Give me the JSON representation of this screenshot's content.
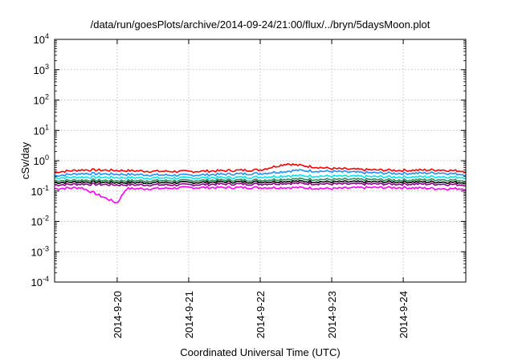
{
  "chart_data": {
    "type": "line",
    "title": "/data/run/goesPlots/archive/2014-09-24/21:00/flux/../bryn/5daysMoon.plot",
    "xlabel": "Coordinated Universal Time (UTC)",
    "ylabel": "cSv/day",
    "y_scale": "log",
    "ylim": [
      0.0001,
      10000
    ],
    "y_ticks": [
      {
        "base": "10",
        "exp": "-4",
        "value": 0.0001
      },
      {
        "base": "10",
        "exp": "-3",
        "value": 0.001
      },
      {
        "base": "10",
        "exp": "-2",
        "value": 0.01
      },
      {
        "base": "10",
        "exp": "-1",
        "value": 0.1
      },
      {
        "base": "10",
        "exp": "0",
        "value": 1
      },
      {
        "base": "10",
        "exp": "1",
        "value": 10
      },
      {
        "base": "10",
        "exp": "2",
        "value": 100
      },
      {
        "base": "10",
        "exp": "3",
        "value": 1000
      },
      {
        "base": "10",
        "exp": "4",
        "value": 10000
      }
    ],
    "xlim": [
      "2014-09-19 03:00",
      "2014-09-24 21:00"
    ],
    "x_ticks": [
      "2014-9-20",
      "2014-9-21",
      "2014-9-22",
      "2014-9-23",
      "2014-9-24"
    ],
    "x_tick_dates": [
      "2014-09-20",
      "2014-09-21",
      "2014-09-22",
      "2014-09-23",
      "2014-09-24"
    ],
    "grid": true,
    "series": [
      {
        "color": "#ff0000",
        "x": [
          "2014-09-19 03:00",
          "2014-09-19 12:00",
          "2014-09-20 00:00",
          "2014-09-20 12:00",
          "2014-09-21 00:00",
          "2014-09-21 12:00",
          "2014-09-22 00:00",
          "2014-09-22 09:00",
          "2014-09-22 12:00",
          "2014-09-23 00:00",
          "2014-09-23 12:00",
          "2014-09-24 00:00",
          "2014-09-24 12:00",
          "2014-09-24 21:00"
        ],
        "values": [
          0.42,
          0.5,
          0.48,
          0.45,
          0.44,
          0.47,
          0.5,
          0.8,
          0.72,
          0.55,
          0.5,
          0.48,
          0.5,
          0.45
        ]
      },
      {
        "color": "#1e90ff",
        "x": [
          "2014-09-19 03:00",
          "2014-09-19 12:00",
          "2014-09-20 00:00",
          "2014-09-20 12:00",
          "2014-09-21 00:00",
          "2014-09-21 12:00",
          "2014-09-22 00:00",
          "2014-09-22 09:00",
          "2014-09-22 12:00",
          "2014-09-23 00:00",
          "2014-09-23 12:00",
          "2014-09-24 00:00",
          "2014-09-24 12:00",
          "2014-09-24 21:00"
        ],
        "values": [
          0.32,
          0.38,
          0.36,
          0.34,
          0.33,
          0.36,
          0.38,
          0.45,
          0.48,
          0.44,
          0.4,
          0.38,
          0.4,
          0.35
        ]
      },
      {
        "color": "#00e5ee",
        "x": [
          "2014-09-19 03:00",
          "2014-09-19 12:00",
          "2014-09-20 00:00",
          "2014-09-20 12:00",
          "2014-09-21 00:00",
          "2014-09-21 12:00",
          "2014-09-22 00:00",
          "2014-09-22 09:00",
          "2014-09-22 12:00",
          "2014-09-23 00:00",
          "2014-09-23 12:00",
          "2014-09-24 00:00",
          "2014-09-24 12:00",
          "2014-09-24 21:00"
        ],
        "values": [
          0.27,
          0.29,
          0.28,
          0.27,
          0.27,
          0.28,
          0.29,
          0.32,
          0.32,
          0.31,
          0.3,
          0.29,
          0.3,
          0.28
        ]
      },
      {
        "color": "#2e8b57",
        "x": [
          "2014-09-19 03:00",
          "2014-09-19 12:00",
          "2014-09-20 00:00",
          "2014-09-20 12:00",
          "2014-09-21 00:00",
          "2014-09-21 12:00",
          "2014-09-22 00:00",
          "2014-09-22 09:00",
          "2014-09-22 12:00",
          "2014-09-23 00:00",
          "2014-09-23 12:00",
          "2014-09-24 00:00",
          "2014-09-24 12:00",
          "2014-09-24 21:00"
        ],
        "values": [
          0.22,
          0.23,
          0.22,
          0.22,
          0.22,
          0.23,
          0.23,
          0.25,
          0.25,
          0.24,
          0.24,
          0.23,
          0.24,
          0.22
        ]
      },
      {
        "color": "#000000",
        "x": [
          "2014-09-19 03:00",
          "2014-09-19 12:00",
          "2014-09-20 00:00",
          "2014-09-20 12:00",
          "2014-09-21 00:00",
          "2014-09-21 12:00",
          "2014-09-22 00:00",
          "2014-09-22 09:00",
          "2014-09-22 12:00",
          "2014-09-23 00:00",
          "2014-09-23 12:00",
          "2014-09-24 00:00",
          "2014-09-24 12:00",
          "2014-09-24 21:00"
        ],
        "values": [
          0.19,
          0.2,
          0.19,
          0.19,
          0.19,
          0.2,
          0.2,
          0.21,
          0.21,
          0.2,
          0.2,
          0.2,
          0.2,
          0.19
        ]
      },
      {
        "color": "#8b008b",
        "x": [
          "2014-09-19 03:00",
          "2014-09-19 12:00",
          "2014-09-20 00:00",
          "2014-09-20 12:00",
          "2014-09-21 00:00",
          "2014-09-21 12:00",
          "2014-09-22 00:00",
          "2014-09-22 09:00",
          "2014-09-22 12:00",
          "2014-09-23 00:00",
          "2014-09-23 12:00",
          "2014-09-24 00:00",
          "2014-09-24 12:00",
          "2014-09-24 21:00"
        ],
        "values": [
          0.16,
          0.17,
          0.16,
          0.16,
          0.16,
          0.17,
          0.17,
          0.18,
          0.18,
          0.17,
          0.17,
          0.17,
          0.17,
          0.16
        ]
      },
      {
        "color": "#ff00ff",
        "x": [
          "2014-09-19 03:00",
          "2014-09-19 12:00",
          "2014-09-20 00:00",
          "2014-09-20 03:00",
          "2014-09-20 12:00",
          "2014-09-21 00:00",
          "2014-09-21 12:00",
          "2014-09-22 00:00",
          "2014-09-22 12:00",
          "2014-09-23 00:00",
          "2014-09-23 12:00",
          "2014-09-24 00:00",
          "2014-09-24 12:00",
          "2014-09-24 21:00"
        ],
        "values": [
          0.12,
          0.13,
          0.04,
          0.12,
          0.12,
          0.13,
          0.13,
          0.13,
          0.13,
          0.12,
          0.13,
          0.13,
          0.12,
          0.12
        ]
      }
    ]
  }
}
